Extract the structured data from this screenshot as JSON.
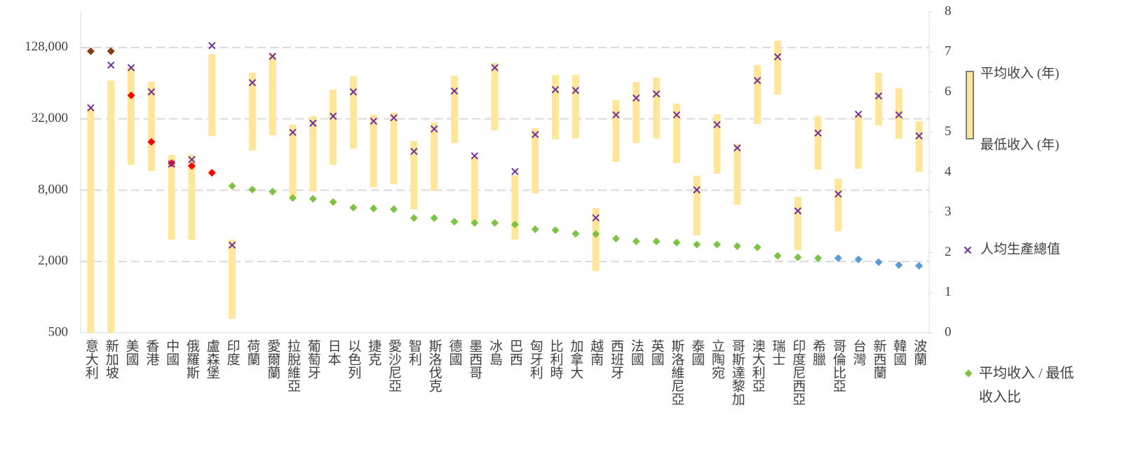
{
  "chart_data": {
    "type": "floating-bar-combo",
    "categories": [
      "意大利",
      "新加坡",
      "美國",
      "香港",
      "中國",
      "俄羅斯",
      "盧森堡",
      "印度",
      "荷蘭",
      "愛爾蘭",
      "拉脫維亞",
      "葡萄牙",
      "日本",
      "以色列",
      "捷克",
      "愛沙尼亞",
      "智利",
      "斯洛伐克",
      "德國",
      "墨西哥",
      "冰島",
      "巴西",
      "匈牙利",
      "比利時",
      "加拿大",
      "越南",
      "西班牙",
      "法國",
      "英國",
      "斯洛維尼亞",
      "泰國",
      "立陶宛",
      "哥斯達黎加",
      "澳大利亞",
      "瑞士",
      "印度尼西亞",
      "希臘",
      "哥倫比亞",
      "台灣",
      "新西蘭",
      "韓國",
      "波蘭"
    ],
    "series": [
      {
        "name": "平均收入 (年)",
        "color": "#ffe699",
        "border": "#7f7f7f",
        "values": [
          39100,
          67400,
          88600,
          65600,
          15900,
          15900,
          113000,
          3060,
          78300,
          113000,
          28600,
          33700,
          56500,
          73200,
          34600,
          36000,
          20900,
          29800,
          74200,
          15300,
          94800,
          10700,
          26700,
          75200,
          75200,
          5650,
          46000,
          65600,
          71200,
          43000,
          10600,
          35000,
          19500,
          91000,
          146000,
          7030,
          33700,
          10000,
          35000,
          78300,
          58000,
          30600
        ]
      },
      {
        "name": "最低收入 (年)",
        "color": "#ffe699",
        "values": [
          500,
          500,
          13100,
          11600,
          3060,
          3060,
          23000,
          657,
          17300,
          23300,
          6840,
          7830,
          13100,
          18000,
          8510,
          8980,
          5500,
          7940,
          20000,
          4360,
          25600,
          3060,
          7530,
          21500,
          22000,
          1660,
          13900,
          20000,
          22000,
          13500,
          3320,
          11000,
          6050,
          29000,
          51300,
          2500,
          11950,
          3600,
          12100,
          28200,
          21700,
          11500
        ]
      },
      {
        "name": "人均生產總值",
        "color": "#7030a0",
        "marker": "x",
        "values": [
          39700,
          91000,
          86600,
          54100,
          13300,
          14500,
          133000,
          2750,
          64700,
          108000,
          24600,
          29400,
          33700,
          54100,
          30600,
          32700,
          17000,
          26300,
          55000,
          15600,
          86600,
          11500,
          23600,
          56500,
          55600,
          4670,
          34600,
          48000,
          52000,
          34600,
          8050,
          28600,
          18200,
          67400,
          107000,
          5350,
          24300,
          7420,
          35000,
          50000,
          34600,
          23000
        ]
      },
      {
        "name": "平均收入 / 最低收入比",
        "axis": "y2",
        "marker": "diamond",
        "color": "#7dc242",
        "colors": [
          "#843c0c",
          "#843c0c",
          "#ff0000",
          "#ff0000",
          "#ff0000",
          "#ff0000",
          "#ff0000",
          "#7dc242",
          "#7dc242",
          "#7dc242",
          "#7dc242",
          "#7dc242",
          "#7dc242",
          "#7dc242",
          "#7dc242",
          "#7dc242",
          "#7dc242",
          "#7dc242",
          "#7dc242",
          "#7dc242",
          "#7dc242",
          "#7dc242",
          "#7dc242",
          "#7dc242",
          "#7dc242",
          "#7dc242",
          "#7dc242",
          "#7dc242",
          "#7dc242",
          "#7dc242",
          "#7dc242",
          "#7dc242",
          "#7dc242",
          "#7dc242",
          "#7dc242",
          "#7dc242",
          "#7dc242",
          "#5b9bd5",
          "#5b9bd5",
          "#5b9bd5",
          "#5b9bd5",
          "#5b9bd5"
        ],
        "values": [
          7.02,
          7.02,
          5.92,
          4.76,
          4.23,
          4.16,
          3.99,
          3.66,
          3.57,
          3.52,
          3.36,
          3.34,
          3.26,
          3.12,
          3.1,
          3.08,
          2.86,
          2.86,
          2.77,
          2.74,
          2.74,
          2.7,
          2.58,
          2.56,
          2.47,
          2.46,
          2.35,
          2.28,
          2.28,
          2.25,
          2.2,
          2.2,
          2.16,
          2.13,
          1.92,
          1.88,
          1.86,
          1.86,
          1.83,
          1.76,
          1.69,
          1.67
        ]
      }
    ],
    "ylim": [
      500,
      256000
    ],
    "log_y": true,
    "yticks": [
      500,
      {
        "value": 2000,
        "label": "2,000"
      },
      {
        "value": 8000,
        "label": "8,000"
      },
      {
        "value": 32000,
        "label": "32,000"
      },
      {
        "value": 128000,
        "label": "128,000"
      }
    ],
    "y2lim": [
      0,
      8
    ],
    "y2ticks": [
      0,
      1,
      2,
      3,
      4,
      5,
      6,
      7,
      8
    ],
    "grid": true,
    "legend": "right"
  }
}
